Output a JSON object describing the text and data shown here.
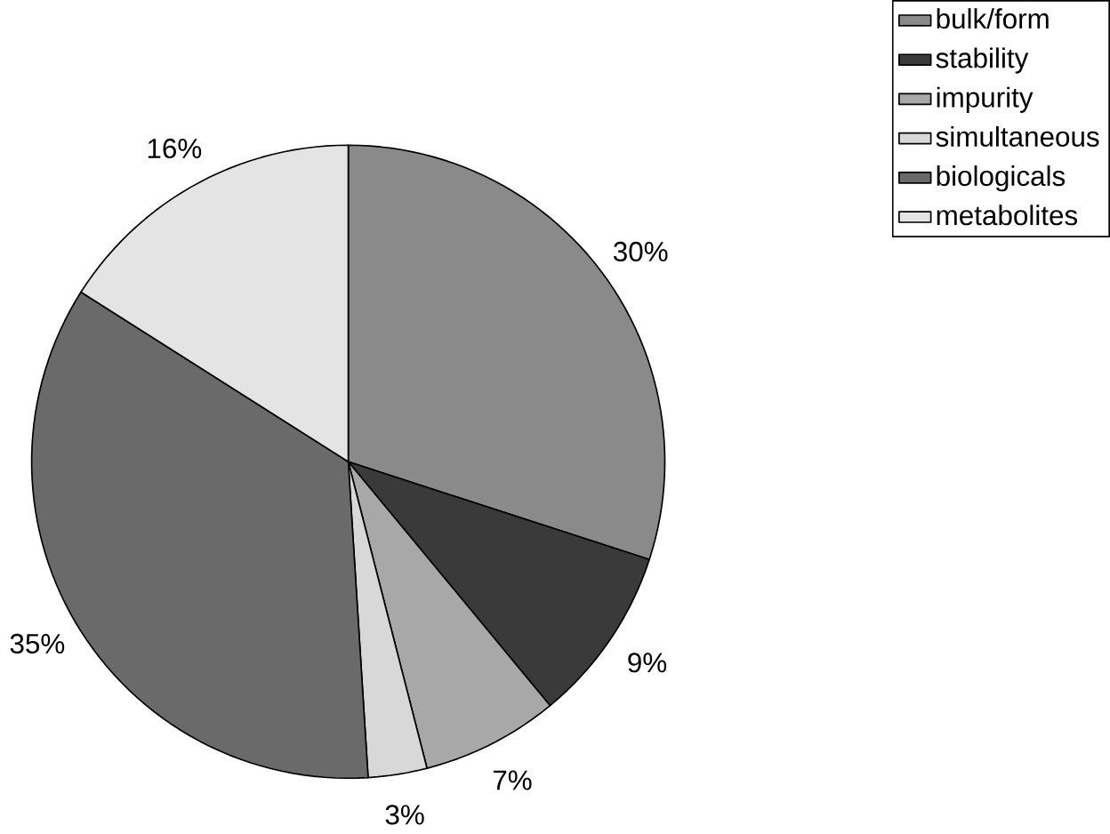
{
  "chart_data": {
    "type": "pie",
    "categories": [
      "bulk/form",
      "stability",
      "impurity",
      "simultaneous",
      "biologicals",
      "metabolites"
    ],
    "values": [
      30,
      9,
      7,
      3,
      35,
      16
    ],
    "value_labels": [
      "30%",
      "9%",
      "7%",
      "3%",
      "35%",
      "16%"
    ],
    "colors": [
      "#8a8a8a",
      "#3a3a3a",
      "#a8a8a8",
      "#d8d8d8",
      "#6a6a6a",
      "#e4e4e4"
    ],
    "legend": "top right"
  }
}
